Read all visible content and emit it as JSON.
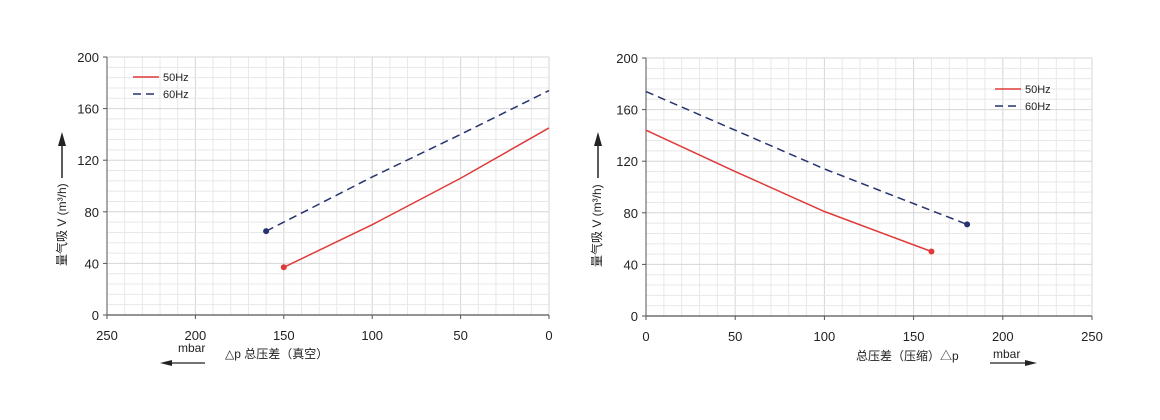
{
  "chart_data": [
    {
      "type": "line",
      "title": "",
      "xlabel": "△p 总压差（真空）",
      "xunit": "mbar",
      "ylabel": "量气吸 V (m³/h)",
      "xlim": [
        250,
        0
      ],
      "ylim": [
        0,
        200
      ],
      "x_reversed": true,
      "xticks": [
        250,
        200,
        150,
        100,
        50,
        0
      ],
      "yticks": [
        0,
        40,
        80,
        120,
        160,
        200
      ],
      "grid": true,
      "legend": "top-left",
      "series": [
        {
          "name": "50Hz",
          "style": "solid",
          "color": "#e03a3a",
          "x": [
            150,
            100,
            50,
            0
          ],
          "y": [
            37,
            70,
            106,
            145
          ]
        },
        {
          "name": "60Hz",
          "style": "dashed",
          "color": "#27336e",
          "x": [
            160,
            100,
            50,
            0
          ],
          "y": [
            65,
            107,
            140,
            174
          ]
        }
      ]
    },
    {
      "type": "line",
      "title": "",
      "xlabel": "总压差（压缩）△p",
      "xunit": "mbar",
      "ylabel": "量气吸 V (m³/h)",
      "xlim": [
        0,
        250
      ],
      "ylim": [
        0,
        200
      ],
      "x_reversed": false,
      "xticks": [
        0,
        50,
        100,
        150,
        200,
        250
      ],
      "yticks": [
        0,
        40,
        80,
        120,
        160,
        200
      ],
      "grid": true,
      "legend": "top-right",
      "series": [
        {
          "name": "50Hz",
          "style": "solid",
          "color": "#e03a3a",
          "x": [
            0,
            50,
            100,
            160
          ],
          "y": [
            144,
            112,
            81,
            50
          ]
        },
        {
          "name": "60Hz",
          "style": "dashed",
          "color": "#27336e",
          "x": [
            0,
            50,
            100,
            180
          ],
          "y": [
            174,
            144,
            114,
            71
          ]
        }
      ]
    }
  ]
}
